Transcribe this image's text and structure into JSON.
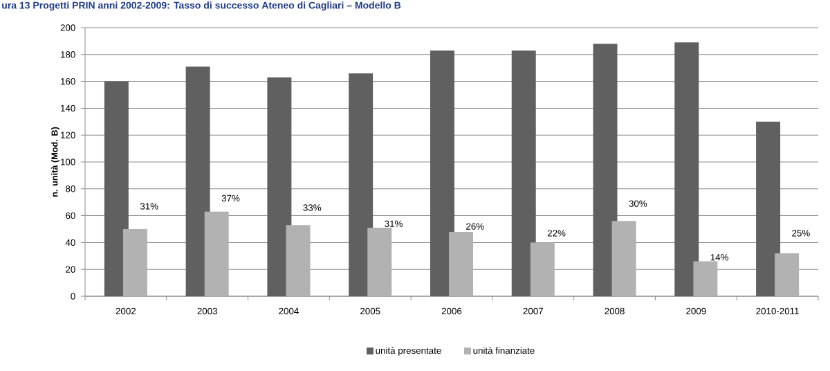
{
  "chart_data": {
    "type": "bar",
    "title": "ura 13 Progetti PRIN anni 2002-2009: Tasso di successo Ateneo di Cagliari – Modello B",
    "ylabel": "n. unità (Mod. B)",
    "categories": [
      "2002",
      "2003",
      "2004",
      "2005",
      "2006",
      "2007",
      "2008",
      "2009",
      "2010-2011"
    ],
    "series": [
      {
        "name": "unità presentate",
        "color": "#606060",
        "values": [
          160,
          171,
          163,
          166,
          183,
          183,
          188,
          189,
          130
        ]
      },
      {
        "name": "unità finanziate",
        "color": "#b2b2b2",
        "values": [
          50,
          63,
          53,
          51,
          48,
          40,
          56,
          26,
          32
        ]
      }
    ],
    "annotations": [
      {
        "text": "31%",
        "x": "2002",
        "y": 67
      },
      {
        "text": "37%",
        "x": "2003",
        "y": 73
      },
      {
        "text": "33%",
        "x": "2004",
        "y": 66
      },
      {
        "text": "31%",
        "x": "2005",
        "y": 54
      },
      {
        "text": "26%",
        "x": "2006",
        "y": 52
      },
      {
        "text": "22%",
        "x": "2007",
        "y": 47
      },
      {
        "text": "30%",
        "x": "2008",
        "y": 69
      },
      {
        "text": "14%",
        "x": "2009",
        "y": 29
      },
      {
        "text": "25%",
        "x": "2010-2011",
        "y": 47
      }
    ],
    "ylim": [
      0,
      200
    ],
    "yticks": [
      0,
      20,
      40,
      60,
      80,
      100,
      120,
      140,
      160,
      180,
      200
    ],
    "grid": "y",
    "legend": "bottom"
  }
}
